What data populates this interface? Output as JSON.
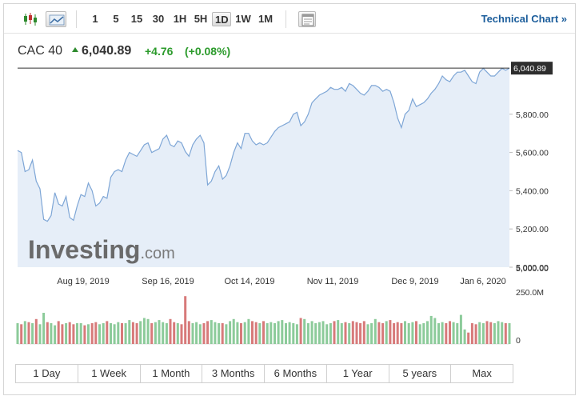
{
  "toolbar": {
    "icons": [
      "candlestick-icon",
      "line-chart-icon",
      "settings-panel-icon"
    ],
    "periods": [
      "1",
      "5",
      "15",
      "30",
      "1H",
      "5H",
      "1D",
      "1W",
      "1M"
    ],
    "active_period": "1D",
    "technical_link": "Technical Chart »"
  },
  "quote": {
    "name": "CAC 40",
    "last": "6,040.89",
    "change": "+4.76",
    "change_pct": "(+0.08%)",
    "direction": "up"
  },
  "watermark": {
    "brand": "Investing",
    "suffix": ".com"
  },
  "ranges": [
    "1 Day",
    "1 Week",
    "1 Month",
    "3 Months",
    "6 Months",
    "1 Year",
    "5 years",
    "Max"
  ],
  "colors": {
    "line": "#7ea6d6",
    "fill": "#e6eef8",
    "up": "#8ccb9a",
    "down": "#d77a7a",
    "link": "#1b5d9b",
    "positive": "#2c9b2c"
  },
  "chart_data": {
    "type": "area",
    "x_axis": {
      "tick_labels": [
        "Aug 19, 2019",
        "Sep 16, 2019",
        "Oct 14, 2019",
        "Nov 11, 2019",
        "Dec 9, 2019",
        "Jan 6, 2020"
      ]
    },
    "y_axis": {
      "tick_values": [
        5000,
        5200,
        5400,
        5600,
        5800
      ],
      "tick_labels": [
        "5,000.00",
        "5,200.00",
        "5,400.00",
        "5,600.00",
        "5,800.00"
      ],
      "range": [
        5000,
        6050
      ],
      "side": "right"
    },
    "last_price_label": "6,040.89",
    "last_price": 6040.89,
    "close": [
      5610,
      5600,
      5500,
      5510,
      5560,
      5450,
      5410,
      5250,
      5240,
      5270,
      5390,
      5330,
      5320,
      5370,
      5260,
      5245,
      5320,
      5380,
      5370,
      5440,
      5400,
      5320,
      5335,
      5370,
      5360,
      5470,
      5500,
      5510,
      5500,
      5560,
      5600,
      5590,
      5580,
      5610,
      5640,
      5650,
      5600,
      5610,
      5620,
      5670,
      5690,
      5640,
      5630,
      5660,
      5650,
      5605,
      5580,
      5640,
      5670,
      5690,
      5650,
      5430,
      5450,
      5500,
      5530,
      5460,
      5480,
      5530,
      5600,
      5650,
      5620,
      5700,
      5700,
      5660,
      5640,
      5650,
      5640,
      5650,
      5680,
      5710,
      5730,
      5740,
      5750,
      5760,
      5800,
      5810,
      5740,
      5760,
      5800,
      5860,
      5880,
      5900,
      5910,
      5920,
      5940,
      5930,
      5930,
      5940,
      5920,
      5960,
      5950,
      5930,
      5910,
      5900,
      5920,
      5950,
      5950,
      5940,
      5920,
      5930,
      5920,
      5860,
      5780,
      5730,
      5800,
      5820,
      5880,
      5840,
      5850,
      5860,
      5880,
      5910,
      5930,
      5960,
      6000,
      5980,
      5970,
      6000,
      6020,
      6020,
      6030,
      6000,
      5970,
      5960,
      6020,
      6040,
      6020,
      6000,
      6000,
      6020,
      6040,
      6030,
      6041
    ],
    "volume": {
      "tick_labels": [
        "250.0M",
        "0"
      ],
      "tick_values": [
        250,
        0
      ],
      "unit": "M",
      "values": [
        100,
        95,
        110,
        105,
        100,
        120,
        95,
        150,
        105,
        100,
        90,
        110,
        95,
        100,
        105,
        95,
        100,
        100,
        90,
        95,
        100,
        105,
        95,
        100,
        110,
        100,
        95,
        105,
        100,
        100,
        115,
        105,
        100,
        110,
        125,
        120,
        100,
        105,
        115,
        105,
        100,
        120,
        105,
        100,
        95,
        230,
        110,
        100,
        105,
        95,
        100,
        110,
        115,
        105,
        100,
        100,
        95,
        110,
        120,
        105,
        100,
        105,
        120,
        110,
        105,
        100,
        110,
        100,
        105,
        100,
        110,
        115,
        100,
        105,
        100,
        95,
        125,
        120,
        100,
        110,
        100,
        105,
        110,
        95,
        100,
        110,
        115,
        100,
        105,
        100,
        110,
        105,
        100,
        110,
        95,
        100,
        120,
        105,
        100,
        110,
        115,
        100,
        105,
        100,
        110,
        100,
        105,
        110,
        95,
        100,
        110,
        135,
        125,
        100,
        105,
        100,
        110,
        105,
        100,
        140,
        70,
        55,
        100,
        95,
        105,
        100,
        110,
        105,
        100,
        110,
        105,
        100,
        100
      ],
      "colors_up_down": [
        1,
        0,
        1,
        0,
        1,
        0,
        1,
        1,
        0,
        1,
        1,
        0,
        0,
        1,
        0,
        0,
        1,
        1,
        0,
        1,
        0,
        0,
        1,
        1,
        0,
        1,
        1,
        1,
        0,
        1,
        1,
        0,
        0,
        1,
        1,
        1,
        0,
        1,
        1,
        1,
        1,
        0,
        0,
        1,
        0,
        0,
        0,
        1,
        1,
        1,
        0,
        0,
        1,
        1,
        1,
        0,
        1,
        1,
        1,
        1,
        0,
        1,
        1,
        0,
        0,
        1,
        0,
        1,
        1,
        1,
        1,
        1,
        1,
        1,
        1,
        1,
        0,
        1,
        1,
        1,
        1,
        1,
        1,
        1,
        1,
        0,
        1,
        1,
        0,
        1,
        0,
        0,
        0,
        0,
        1,
        1,
        1,
        0,
        0,
        1,
        0,
        0,
        0,
        0,
        1,
        1,
        1,
        0,
        1,
        1,
        1,
        1,
        1,
        1,
        1,
        0,
        0,
        1,
        1,
        1,
        1,
        0,
        0,
        0,
        1,
        1,
        0,
        0,
        1,
        1,
        1,
        0,
        1
      ]
    }
  }
}
